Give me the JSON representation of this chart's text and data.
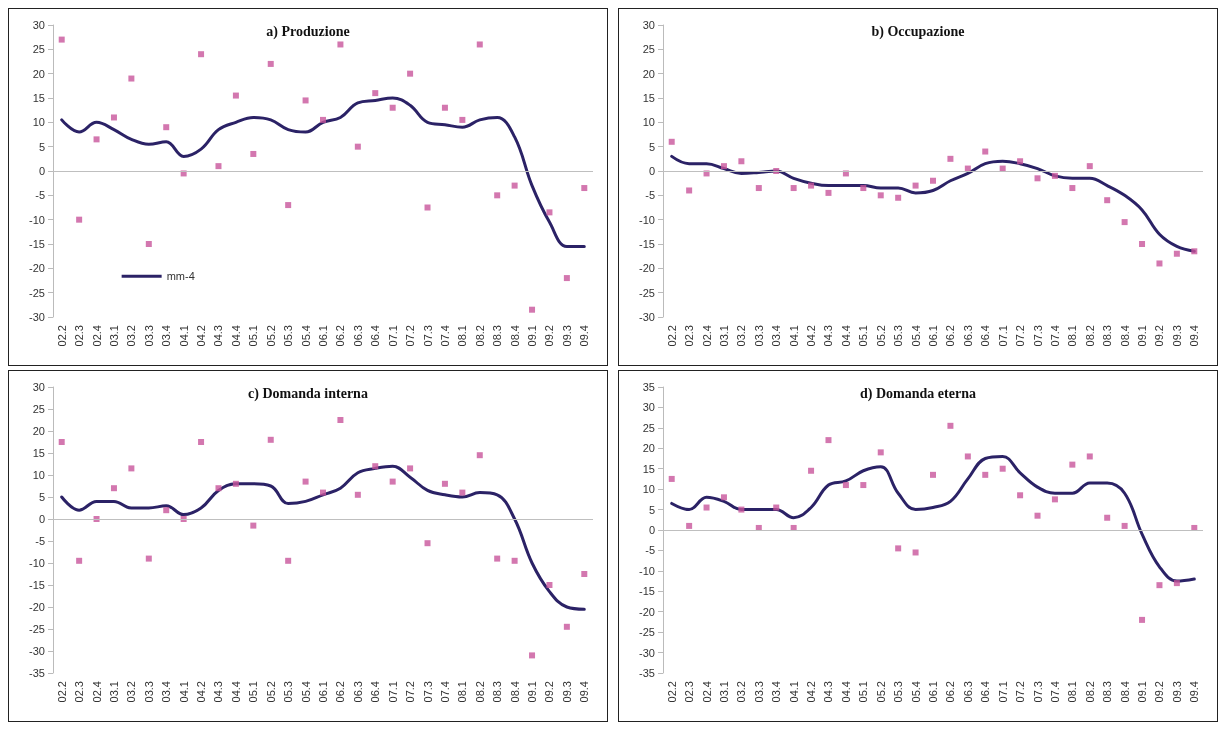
{
  "chart_data": [
    {
      "type": "scatter",
      "title": "a) Produzione",
      "categories": [
        "02.2",
        "02.3",
        "02.4",
        "03.1",
        "03.2",
        "03.3",
        "03.4",
        "04.1",
        "04.2",
        "04.3",
        "04.4",
        "05.1",
        "05.2",
        "05.3",
        "05.4",
        "06.1",
        "06.2",
        "06.3",
        "06.4",
        "07.1",
        "07.2",
        "07.3",
        "07.4",
        "08.1",
        "08.2",
        "08.3",
        "08.4",
        "09.1",
        "09.2",
        "09.3",
        "09.4"
      ],
      "ylim": [
        -30,
        30
      ],
      "yticks": [
        -30,
        -25,
        -20,
        -15,
        -10,
        -5,
        0,
        5,
        10,
        15,
        20,
        25,
        30
      ],
      "grid": false,
      "legend": "bottom left",
      "ref_lines": [
        {
          "axis": "y",
          "value": 0,
          "color": "#bfbfbf"
        }
      ],
      "series": [
        {
          "marker": "square",
          "color": "#c8559b",
          "values": [
            27,
            -10,
            6.5,
            11,
            19,
            -15,
            9,
            -0.5,
            24,
            1,
            15.5,
            3.5,
            22,
            -7,
            14.5,
            10.5,
            26,
            5,
            16,
            13,
            20,
            -7.5,
            13,
            10.5,
            26,
            -5,
            -3,
            -28.5,
            -8.5,
            -22,
            -3.5
          ]
        },
        {
          "type": "line",
          "name": "mm-4",
          "marker": "none",
          "line_style": "solid",
          "color": "#2b2266",
          "values": [
            10.5,
            8,
            10,
            8.5,
            6.5,
            5.5,
            6,
            3,
            4.5,
            8.5,
            10,
            11,
            10.5,
            8.5,
            8,
            10,
            11,
            14,
            14.5,
            15,
            13.5,
            10,
            9.5,
            9,
            10.5,
            11,
            7,
            -3,
            -10.5,
            -15.5,
            -15.5
          ]
        }
      ]
    },
    {
      "type": "scatter",
      "title": "b) Occupazione",
      "categories": [
        "02.2",
        "02.3",
        "02.4",
        "03.1",
        "03.2",
        "03.3",
        "03.4",
        "04.1",
        "04.2",
        "04.3",
        "04.4",
        "05.1",
        "05.2",
        "05.3",
        "05.4",
        "06.1",
        "06.2",
        "06.3",
        "06.4",
        "07.1",
        "07.2",
        "07.3",
        "07.4",
        "08.1",
        "08.2",
        "08.3",
        "08.4",
        "09.1",
        "09.2",
        "09.3",
        "09.4"
      ],
      "ylim": [
        -30,
        30
      ],
      "yticks": [
        -30,
        -25,
        -20,
        -15,
        -10,
        -5,
        0,
        5,
        10,
        15,
        20,
        25,
        30
      ],
      "grid": false,
      "ref_lines": [
        {
          "axis": "y",
          "value": 0,
          "color": "#bfbfbf"
        }
      ],
      "series": [
        {
          "marker": "square",
          "color": "#c8559b",
          "values": [
            6,
            -4,
            -0.5,
            1,
            2,
            -3.5,
            0,
            -3.5,
            -3,
            -4.5,
            -0.5,
            -3.5,
            -5,
            -5.5,
            -3,
            -2,
            2.5,
            0.5,
            4,
            0.5,
            2,
            -1.5,
            -1,
            -3.5,
            1,
            -6,
            -10.5,
            -15,
            -19,
            -17,
            -16.5
          ]
        },
        {
          "type": "line",
          "marker": "none",
          "line_style": "solid",
          "color": "#2b2266",
          "values": [
            3,
            1.5,
            1.5,
            0.5,
            -0.5,
            -0.3,
            0,
            -1.5,
            -2.5,
            -3,
            -3,
            -3,
            -3.5,
            -3.5,
            -4.5,
            -4,
            -2,
            -0.5,
            1.5,
            2,
            1.5,
            0.5,
            -1,
            -1.5,
            -1.5,
            -3,
            -5,
            -8,
            -13,
            -15.5,
            -16.5
          ]
        }
      ]
    },
    {
      "type": "scatter",
      "title": "c) Domanda interna",
      "categories": [
        "02.2",
        "02.3",
        "02.4",
        "03.1",
        "03.2",
        "03.3",
        "03.4",
        "04.1",
        "04.2",
        "04.3",
        "04.4",
        "05.1",
        "05.2",
        "05.3",
        "05.4",
        "06.1",
        "06.2",
        "06.3",
        "06.4",
        "07.1",
        "07.2",
        "07.3",
        "07.4",
        "08.1",
        "08.2",
        "08.3",
        "08.4",
        "09.1",
        "09.2",
        "09.3",
        "09.4"
      ],
      "ylim": [
        -35,
        30
      ],
      "yticks": [
        -35,
        -30,
        -25,
        -20,
        -15,
        -10,
        -5,
        0,
        5,
        10,
        15,
        20,
        25,
        30
      ],
      "grid": false,
      "ref_lines": [
        {
          "axis": "y",
          "value": 0,
          "color": "#bfbfbf"
        }
      ],
      "series": [
        {
          "marker": "square",
          "color": "#c8559b",
          "values": [
            17.5,
            -9.5,
            0,
            7,
            11.5,
            -9,
            2,
            0,
            17.5,
            7,
            8,
            -1.5,
            18,
            -9.5,
            8.5,
            6,
            22.5,
            5.5,
            12,
            8.5,
            11.5,
            -5.5,
            8,
            6,
            14.5,
            -9,
            -9.5,
            -31,
            -15,
            -24.5,
            -12.5
          ]
        },
        {
          "type": "line",
          "marker": "none",
          "line_style": "solid",
          "color": "#2b2266",
          "values": [
            5,
            2,
            4,
            4,
            2.5,
            2.5,
            3,
            1,
            2.5,
            6.5,
            8,
            8,
            7.5,
            3.5,
            4,
            5.5,
            7,
            10.5,
            11.5,
            12,
            9.5,
            6.5,
            5.5,
            5,
            6,
            5.5,
            0,
            -10,
            -16.5,
            -20,
            -20.5
          ]
        }
      ]
    },
    {
      "type": "scatter",
      "title": "d) Domanda eterna",
      "categories": [
        "02.2",
        "02.3",
        "02.4",
        "03.1",
        "03.2",
        "03.3",
        "03.4",
        "04.1",
        "04.2",
        "04.3",
        "04.4",
        "05.1",
        "05.2",
        "05.3",
        "05.4",
        "06.1",
        "06.2",
        "06.3",
        "06.4",
        "07.1",
        "07.2",
        "07.3",
        "07.4",
        "08.1",
        "08.2",
        "08.3",
        "08.4",
        "09.1",
        "09.2",
        "09.3",
        "09.4"
      ],
      "ylim": [
        -35,
        35
      ],
      "yticks": [
        -35,
        -30,
        -25,
        -20,
        -15,
        -10,
        -5,
        0,
        5,
        10,
        15,
        20,
        25,
        30,
        35
      ],
      "grid": false,
      "ref_lines": [
        {
          "axis": "y",
          "value": 0,
          "color": "#bfbfbf"
        }
      ],
      "series": [
        {
          "marker": "square",
          "color": "#c8559b",
          "values": [
            12.5,
            1,
            5.5,
            8,
            5,
            0.5,
            5.5,
            0.5,
            14.5,
            22,
            11,
            11,
            19,
            -4.5,
            -5.5,
            13.5,
            25.5,
            18,
            13.5,
            15,
            8.5,
            3.5,
            7.5,
            16,
            18,
            3,
            1,
            -22,
            -13.5,
            -13,
            0.5
          ]
        },
        {
          "type": "line",
          "marker": "none",
          "line_style": "solid",
          "color": "#2b2266",
          "values": [
            6.5,
            5,
            8,
            7,
            5,
            5,
            5,
            3,
            5.5,
            11,
            12,
            14.5,
            15.5,
            9,
            5,
            5.5,
            7,
            12.5,
            17.5,
            18,
            14,
            10.5,
            9,
            9,
            11.5,
            11.5,
            9,
            -1,
            -9,
            -12.5,
            -12
          ]
        }
      ]
    }
  ]
}
